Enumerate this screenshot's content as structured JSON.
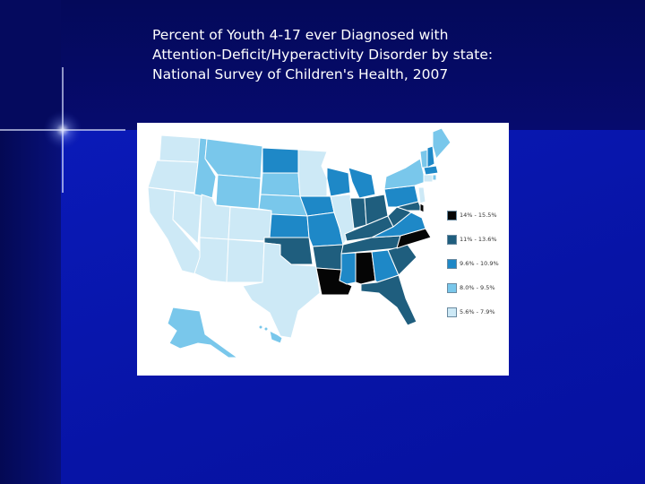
{
  "slide": {
    "title_lines": [
      "Percent of Youth 4-17 ever Diagnosed with",
      "Attention-Deficit/Hyperactivity Disorder by state:",
      "National Survey of Children's Health, 2007"
    ]
  },
  "colors": {
    "background": "#0a16a8",
    "title_text": "#ffffff",
    "map_background": "#ffffff",
    "state_border": "#ffffff"
  },
  "map": {
    "legend": [
      {
        "label": "14% - 15.5%",
        "color": "#050505"
      },
      {
        "label": "11% - 13.6%",
        "color": "#1f5e7e"
      },
      {
        "label": "9.6% - 10.9%",
        "color": "#1e88c7"
      },
      {
        "label": "8.0% - 9.5%",
        "color": "#79c7eb"
      },
      {
        "label": "5.6% - 7.9%",
        "color": "#cde9f6"
      }
    ]
  }
}
